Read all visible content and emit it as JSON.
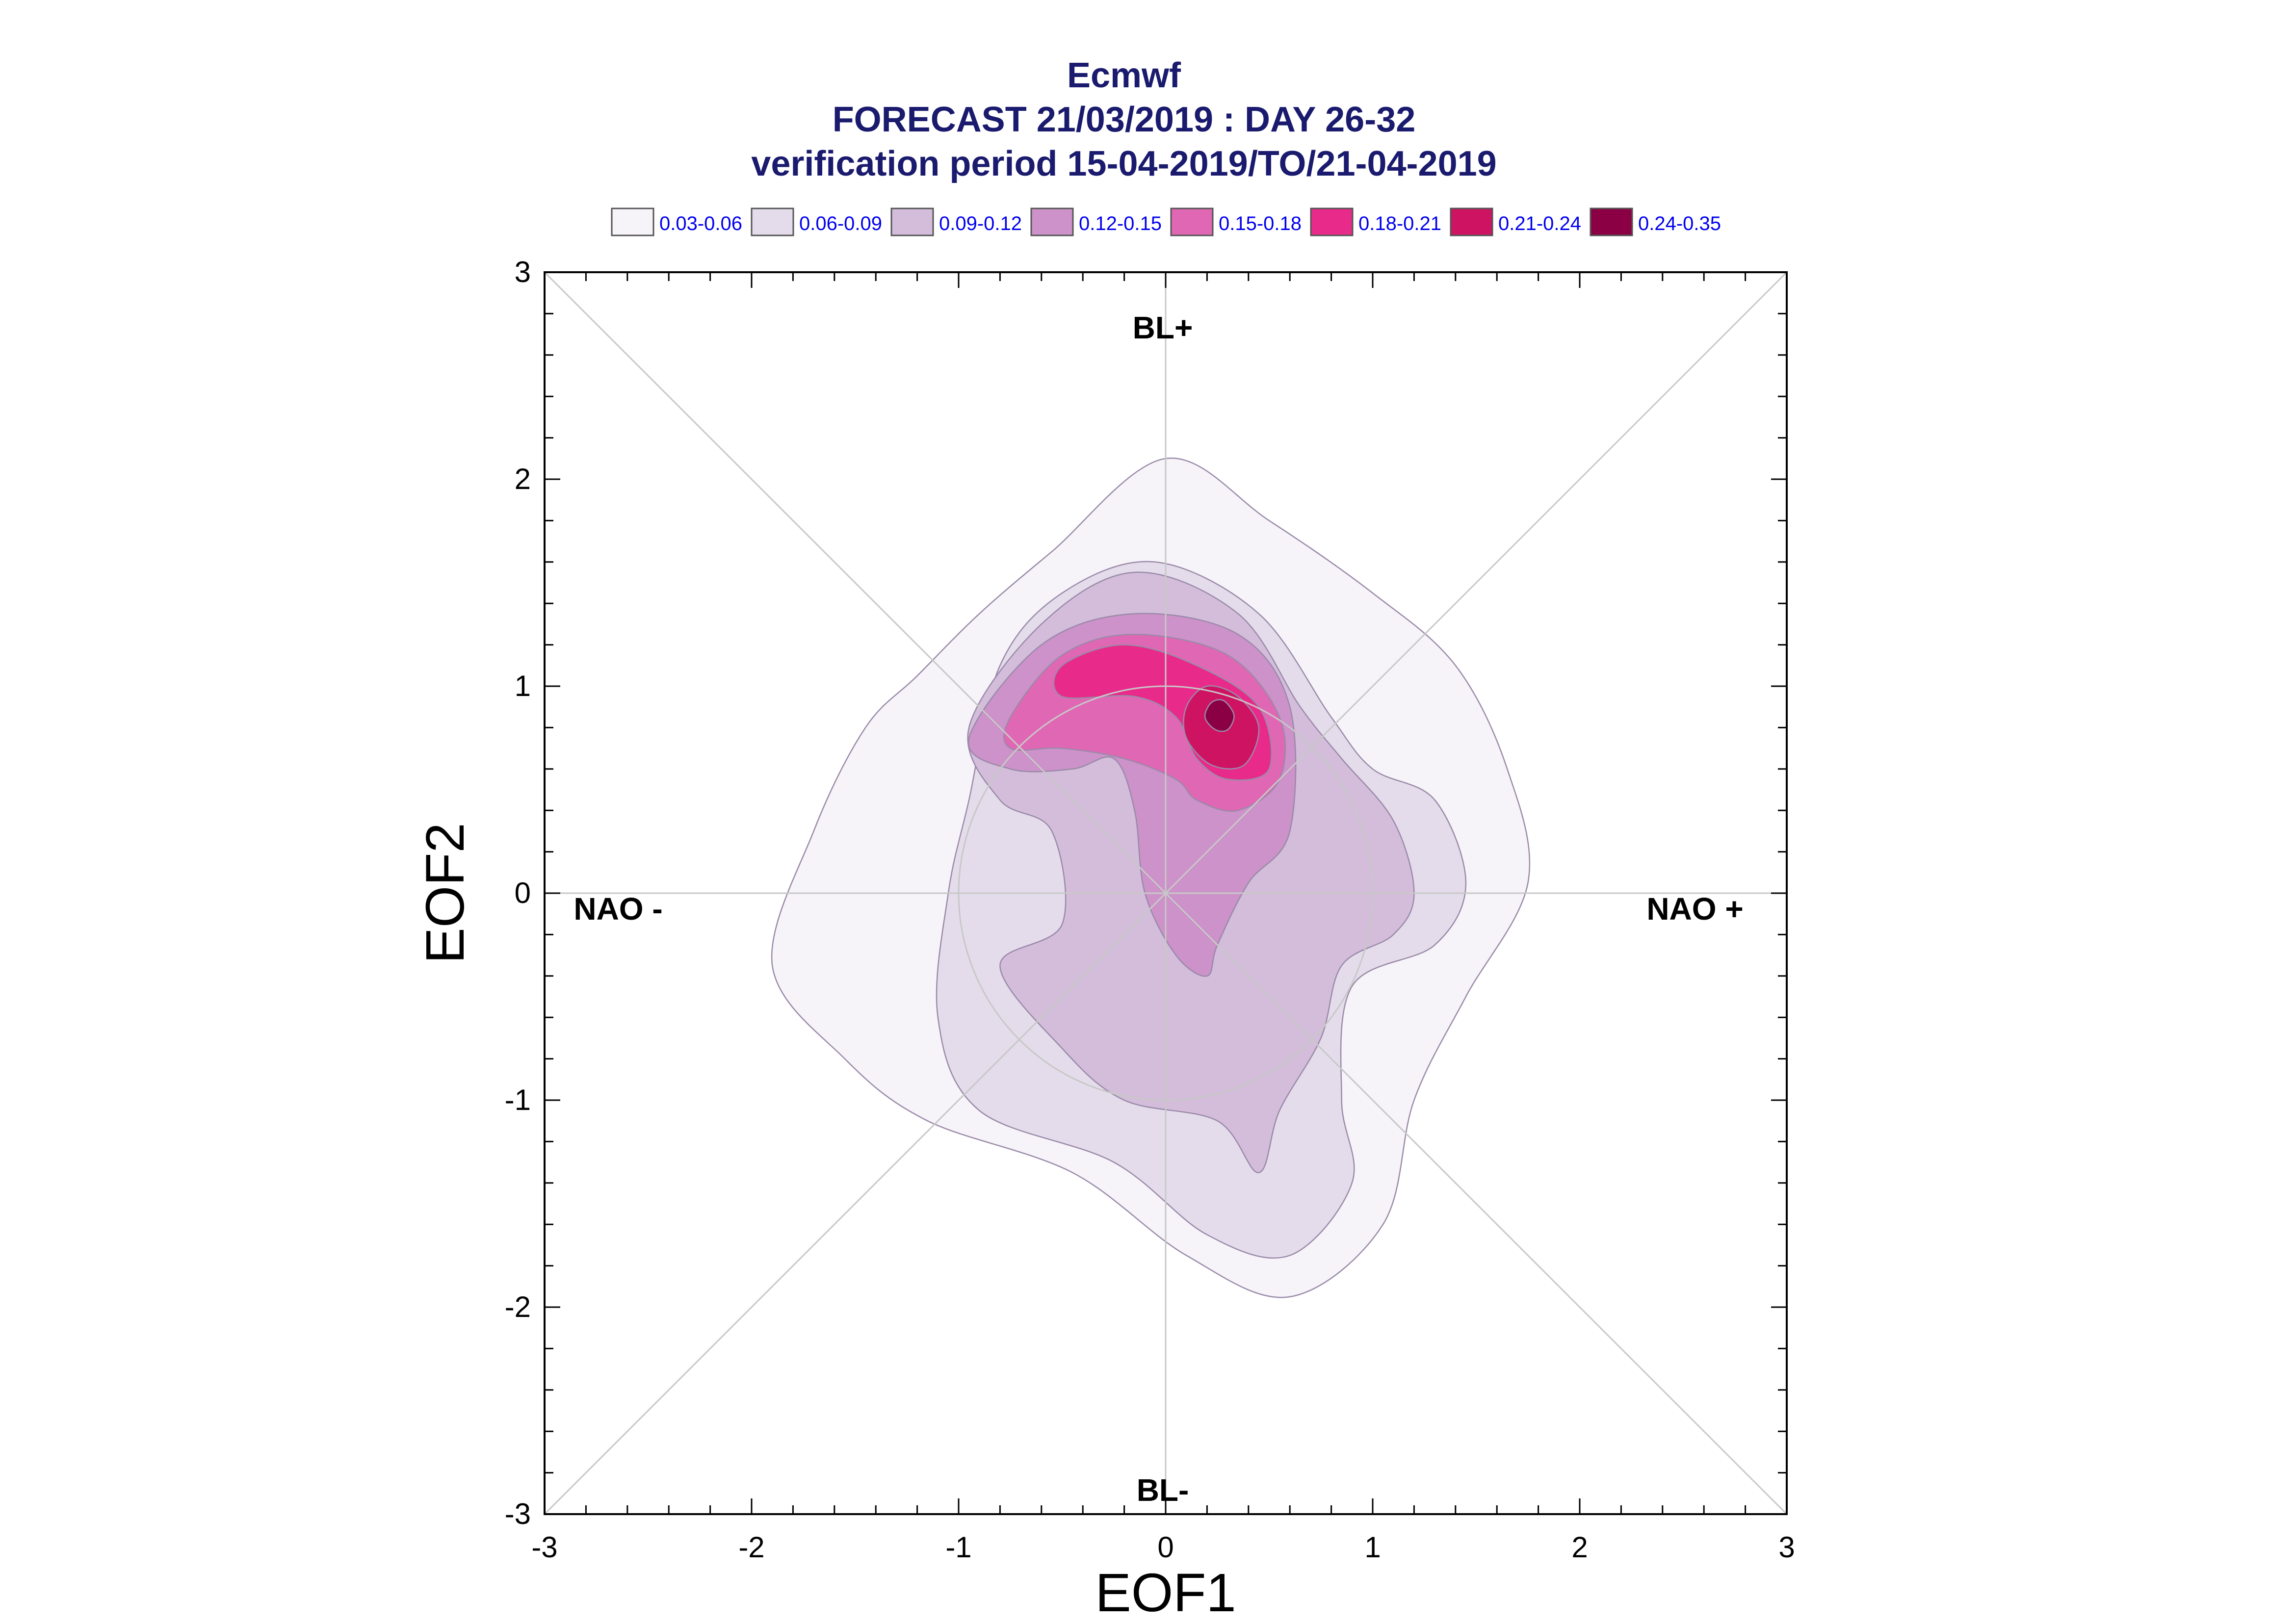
{
  "chart_data": {
    "type": "contour",
    "title_lines": [
      "Ecmwf",
      "FORECAST 21/03/2019 : DAY 26-32",
      "verification period 15-04-2019/TO/21-04-2019"
    ],
    "xlabel": "EOF1",
    "ylabel": "EOF2",
    "xlim": [
      -3,
      3
    ],
    "ylim": [
      -3,
      3
    ],
    "x_ticks": [
      "-3",
      "-2",
      "-1",
      "0",
      "1",
      "2",
      "3"
    ],
    "y_ticks": [
      "-3",
      "-2",
      "-1",
      "0",
      "1",
      "2",
      "3"
    ],
    "regime_labels": {
      "top": "BL+",
      "bottom": "BL-",
      "left": "NAO -",
      "right": "NAO +"
    },
    "reference_circle_radius": 1,
    "diagonals": true,
    "legend_placement": "top",
    "levels": [
      {
        "label": "0.03-0.06",
        "color": "#f6f3f9"
      },
      {
        "label": "0.06-0.09",
        "color": "#e4dceb"
      },
      {
        "label": "0.09-0.12",
        "color": "#d3bddb"
      },
      {
        "label": "0.12-0.15",
        "color": "#cc92c9"
      },
      {
        "label": "0.15-0.18",
        "color": "#e067b4"
      },
      {
        "label": "0.18-0.21",
        "color": "#e82b8a"
      },
      {
        "label": "0.21-0.24",
        "color": "#cf1363"
      },
      {
        "label": "0.24-0.35",
        "color": "#8b0044"
      }
    ],
    "contours": [
      {
        "level": "0.03-0.06",
        "points": [
          [
            -0.9,
            1.35
          ],
          [
            -0.55,
            1.65
          ],
          [
            0.0,
            2.1
          ],
          [
            0.5,
            1.8
          ],
          [
            1.0,
            1.45
          ],
          [
            1.4,
            1.1
          ],
          [
            1.65,
            0.6
          ],
          [
            1.75,
            0.05
          ],
          [
            1.45,
            -0.5
          ],
          [
            1.2,
            -1.0
          ],
          [
            1.05,
            -1.6
          ],
          [
            0.6,
            -1.95
          ],
          [
            0.1,
            -1.75
          ],
          [
            -0.45,
            -1.35
          ],
          [
            -1.15,
            -1.1
          ],
          [
            -1.55,
            -0.8
          ],
          [
            -1.9,
            -0.35
          ],
          [
            -1.7,
            0.3
          ],
          [
            -1.45,
            0.8
          ],
          [
            -1.2,
            1.05
          ]
        ]
      },
      {
        "level": "0.06-0.09",
        "points": [
          [
            -0.8,
            1.1
          ],
          [
            -0.5,
            1.45
          ],
          [
            -0.05,
            1.6
          ],
          [
            0.45,
            1.35
          ],
          [
            0.8,
            0.85
          ],
          [
            1.0,
            0.6
          ],
          [
            1.3,
            0.45
          ],
          [
            1.45,
            0.05
          ],
          [
            1.3,
            -0.25
          ],
          [
            0.9,
            -0.45
          ],
          [
            0.85,
            -1.0
          ],
          [
            0.9,
            -1.4
          ],
          [
            0.6,
            -1.75
          ],
          [
            0.2,
            -1.65
          ],
          [
            -0.25,
            -1.3
          ],
          [
            -0.9,
            -1.05
          ],
          [
            -1.1,
            -0.6
          ],
          [
            -1.05,
            0.0
          ],
          [
            -0.95,
            0.45
          ]
        ]
      },
      {
        "level": "0.09-0.12",
        "points": [
          [
            -0.95,
            0.8
          ],
          [
            -0.6,
            1.3
          ],
          [
            -0.15,
            1.55
          ],
          [
            0.35,
            1.35
          ],
          [
            0.65,
            0.9
          ],
          [
            0.85,
            0.65
          ],
          [
            1.1,
            0.35
          ],
          [
            1.2,
            0.0
          ],
          [
            1.1,
            -0.2
          ],
          [
            0.85,
            -0.35
          ],
          [
            0.75,
            -0.7
          ],
          [
            0.55,
            -1.05
          ],
          [
            0.45,
            -1.35
          ],
          [
            0.25,
            -1.1
          ],
          [
            -0.2,
            -1.0
          ],
          [
            -0.5,
            -0.75
          ],
          [
            -0.8,
            -0.35
          ],
          [
            -0.5,
            -0.15
          ],
          [
            -0.55,
            0.3
          ],
          [
            -0.8,
            0.45
          ]
        ]
      },
      {
        "level": "0.12-0.15",
        "points": [
          [
            -0.95,
            0.75
          ],
          [
            -0.6,
            1.2
          ],
          [
            -0.15,
            1.35
          ],
          [
            0.35,
            1.25
          ],
          [
            0.6,
            0.9
          ],
          [
            0.6,
            0.3
          ],
          [
            0.4,
            0.05
          ],
          [
            0.25,
            -0.25
          ],
          [
            0.2,
            -0.4
          ],
          [
            0.05,
            -0.3
          ],
          [
            -0.1,
            0.0
          ],
          [
            -0.15,
            0.4
          ],
          [
            -0.25,
            0.65
          ],
          [
            -0.45,
            0.6
          ],
          [
            -0.75,
            0.6
          ]
        ]
      },
      {
        "level": "0.15-0.18",
        "points": [
          [
            -0.75,
            0.85
          ],
          [
            -0.5,
            1.15
          ],
          [
            -0.15,
            1.25
          ],
          [
            0.3,
            1.15
          ],
          [
            0.55,
            0.85
          ],
          [
            0.55,
            0.55
          ],
          [
            0.35,
            0.4
          ],
          [
            0.15,
            0.45
          ],
          [
            0.05,
            0.55
          ],
          [
            -0.2,
            0.65
          ],
          [
            -0.5,
            0.7
          ],
          [
            -0.75,
            0.7
          ]
        ]
      },
      {
        "level": "0.18-0.21",
        "points": [
          [
            -0.5,
            1.1
          ],
          [
            -0.2,
            1.2
          ],
          [
            0.15,
            1.1
          ],
          [
            0.45,
            0.9
          ],
          [
            0.5,
            0.6
          ],
          [
            0.3,
            0.55
          ],
          [
            0.15,
            0.65
          ],
          [
            0.05,
            0.85
          ],
          [
            -0.15,
            0.95
          ],
          [
            -0.5,
            0.95
          ]
        ]
      },
      {
        "level": "0.21-0.24",
        "points": [
          [
            0.1,
            0.9
          ],
          [
            0.2,
            1.0
          ],
          [
            0.35,
            0.95
          ],
          [
            0.45,
            0.8
          ],
          [
            0.38,
            0.62
          ],
          [
            0.22,
            0.62
          ],
          [
            0.1,
            0.75
          ]
        ]
      },
      {
        "level": "0.24-0.35",
        "points": [
          [
            0.19,
            0.85
          ],
          [
            0.22,
            0.92
          ],
          [
            0.28,
            0.93
          ],
          [
            0.33,
            0.86
          ],
          [
            0.3,
            0.79
          ],
          [
            0.24,
            0.79
          ]
        ]
      }
    ]
  }
}
